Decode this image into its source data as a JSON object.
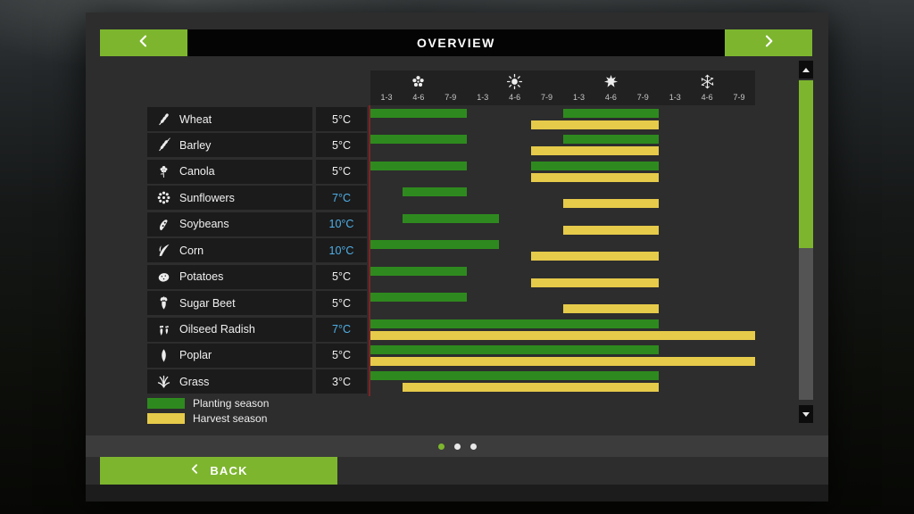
{
  "header": {
    "title": "OVERVIEW"
  },
  "seasons": [
    {
      "name": "spring",
      "icon": "flower-icon",
      "ticks": [
        "1-3",
        "4-6",
        "7-9"
      ]
    },
    {
      "name": "summer",
      "icon": "sun-icon",
      "ticks": [
        "1-3",
        "4-6",
        "7-9"
      ]
    },
    {
      "name": "autumn",
      "icon": "leaf-icon",
      "ticks": [
        "1-3",
        "4-6",
        "7-9"
      ]
    },
    {
      "name": "winter",
      "icon": "snowflake-icon",
      "ticks": [
        "1-3",
        "4-6",
        "7-9"
      ]
    }
  ],
  "crops": [
    {
      "name": "Wheat",
      "icon": "wheat-icon",
      "temp": "5°C",
      "temp_highlight": false,
      "planting": [
        [
          1,
          3
        ],
        [
          7,
          9
        ]
      ],
      "harvest": [
        [
          6,
          9
        ]
      ]
    },
    {
      "name": "Barley",
      "icon": "barley-icon",
      "temp": "5°C",
      "temp_highlight": false,
      "planting": [
        [
          1,
          3
        ],
        [
          7,
          9
        ]
      ],
      "harvest": [
        [
          6,
          9
        ]
      ]
    },
    {
      "name": "Canola",
      "icon": "canola-icon",
      "temp": "5°C",
      "temp_highlight": false,
      "planting": [
        [
          1,
          3
        ],
        [
          6,
          9
        ]
      ],
      "harvest": [
        [
          6,
          9
        ]
      ]
    },
    {
      "name": "Sunflowers",
      "icon": "sunflower-icon",
      "temp": "7°C",
      "temp_highlight": true,
      "planting": [
        [
          2,
          3
        ]
      ],
      "harvest": [
        [
          7,
          9
        ]
      ]
    },
    {
      "name": "Soybeans",
      "icon": "soybean-icon",
      "temp": "10°C",
      "temp_highlight": true,
      "planting": [
        [
          2,
          4
        ]
      ],
      "harvest": [
        [
          7,
          9
        ]
      ]
    },
    {
      "name": "Corn",
      "icon": "corn-icon",
      "temp": "10°C",
      "temp_highlight": true,
      "planting": [
        [
          1,
          4
        ]
      ],
      "harvest": [
        [
          6,
          9
        ]
      ]
    },
    {
      "name": "Potatoes",
      "icon": "potato-icon",
      "temp": "5°C",
      "temp_highlight": false,
      "planting": [
        [
          1,
          3
        ]
      ],
      "harvest": [
        [
          6,
          9
        ]
      ]
    },
    {
      "name": "Sugar Beet",
      "icon": "sugarbeet-icon",
      "temp": "5°C",
      "temp_highlight": false,
      "planting": [
        [
          1,
          3
        ]
      ],
      "harvest": [
        [
          7,
          9
        ]
      ]
    },
    {
      "name": "Oilseed Radish",
      "icon": "radish-icon",
      "temp": "7°C",
      "temp_highlight": true,
      "planting": [
        [
          1,
          9
        ]
      ],
      "harvest": [
        [
          1,
          12
        ]
      ]
    },
    {
      "name": "Poplar",
      "icon": "poplar-icon",
      "temp": "5°C",
      "temp_highlight": false,
      "planting": [
        [
          1,
          9
        ]
      ],
      "harvest": [
        [
          1,
          12
        ]
      ]
    },
    {
      "name": "Grass",
      "icon": "grass-icon",
      "temp": "3°C",
      "temp_highlight": false,
      "planting": [
        [
          1,
          9
        ]
      ],
      "harvest": [
        [
          2,
          9
        ]
      ]
    }
  ],
  "legend": [
    {
      "label": "Planting season",
      "color": "#2e8a1e"
    },
    {
      "label": "Harvest season",
      "color": "#e6ca4a"
    }
  ],
  "pagination": {
    "dots": 3,
    "active_index": 0
  },
  "footer": {
    "back_label": "BACK"
  },
  "colors": {
    "accent_green": "#7db62e",
    "bar_green": "#2e8a1e",
    "bar_yellow": "#e6ca4a",
    "temp_blue": "#4fb0e8",
    "dot_inactive": "#e8e8e8"
  }
}
